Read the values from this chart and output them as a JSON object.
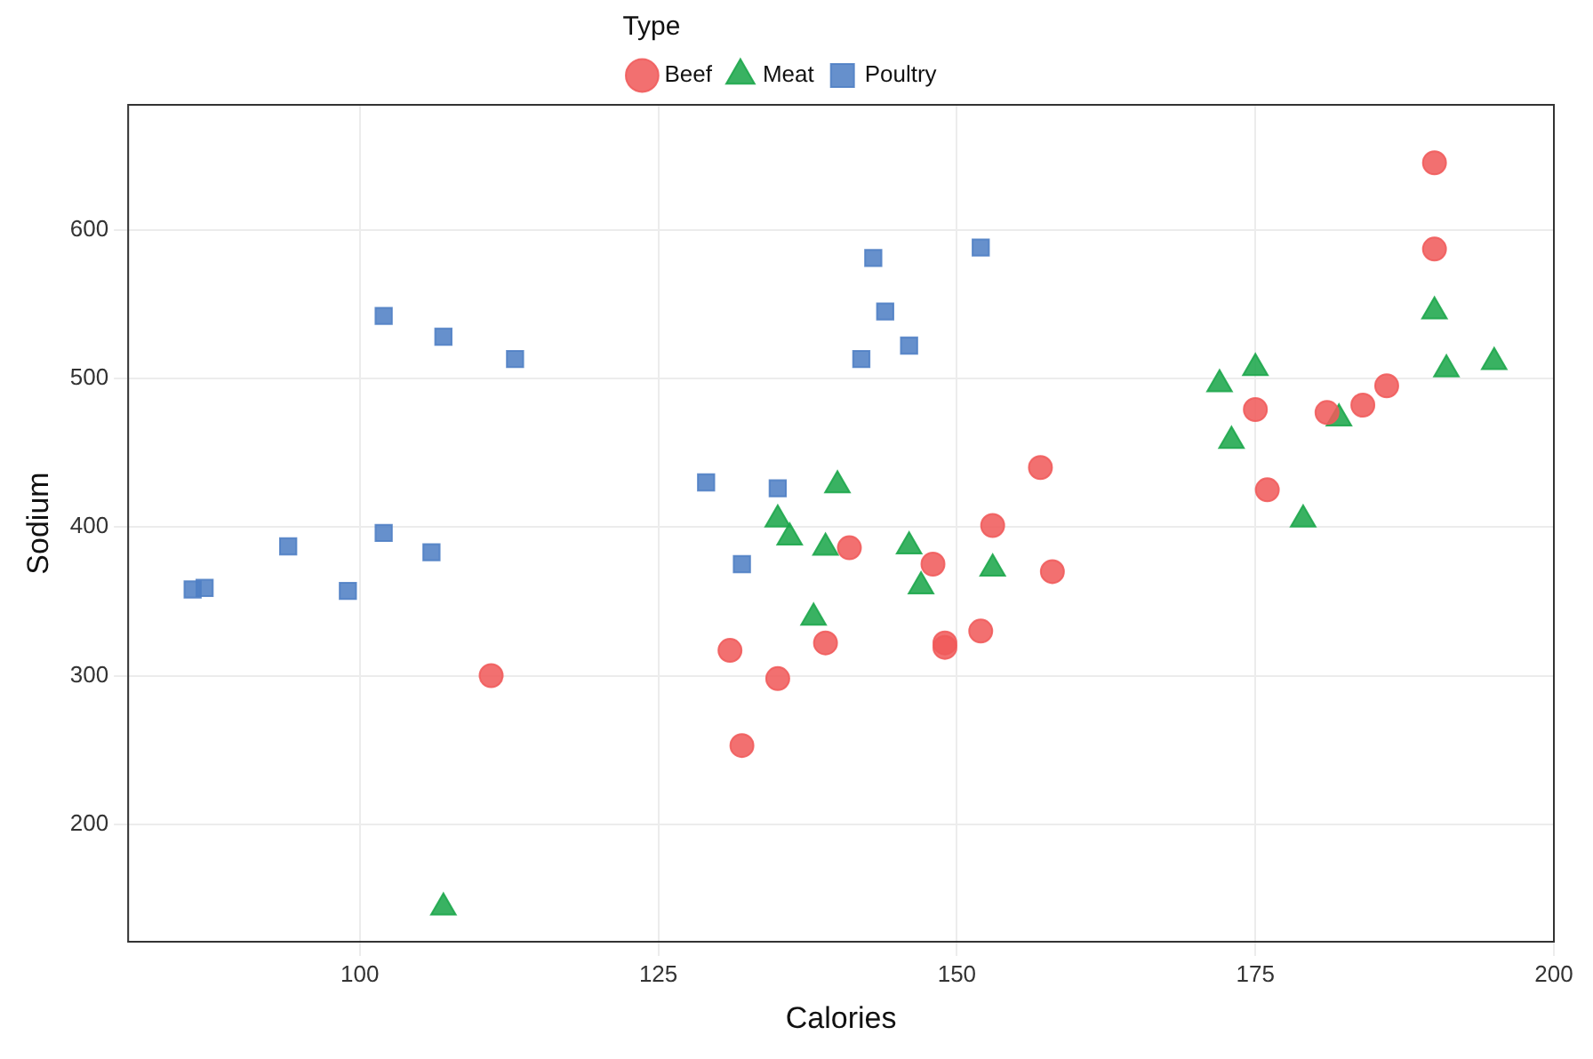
{
  "chart_data": {
    "type": "scatter",
    "xlabel": "Calories",
    "ylabel": "Sodium",
    "legend_title": "Type",
    "legend": "top",
    "grid": true,
    "xlim": [
      80.6,
      200
    ],
    "xticks": [
      100,
      125,
      150,
      175,
      200
    ],
    "ylim": [
      121,
      684
    ],
    "yticks": [
      200,
      300,
      400,
      500,
      600
    ],
    "series": [
      {
        "name": "Beef",
        "color": "#f05a5a",
        "marker": "circle",
        "x": [
          186,
          181,
          176,
          149,
          184,
          190,
          158,
          139,
          175,
          148,
          152,
          111,
          141,
          153,
          190,
          157,
          131,
          149,
          135,
          132
        ],
        "values": [
          495,
          477,
          425,
          322,
          482,
          587,
          370,
          322,
          479,
          375,
          330,
          300,
          386,
          401,
          645,
          440,
          317,
          319,
          298,
          253
        ]
      },
      {
        "name": "Meat",
        "color": "#1aa64a",
        "marker": "triangle",
        "x": [
          173,
          191,
          182,
          190,
          172,
          147,
          146,
          139,
          175,
          136,
          179,
          153,
          107,
          195,
          135,
          140,
          138
        ],
        "values": [
          458,
          506,
          473,
          545,
          496,
          360,
          387,
          386,
          507,
          393,
          405,
          372,
          144,
          511,
          405,
          428,
          339
        ]
      },
      {
        "name": "Poultry",
        "color": "#4e7fc4",
        "marker": "square",
        "x": [
          129,
          132,
          102,
          106,
          94,
          102,
          87,
          99,
          107,
          113,
          135,
          142,
          86,
          143,
          152,
          146,
          144
        ],
        "values": [
          430,
          375,
          396,
          383,
          387,
          542,
          359,
          357,
          528,
          513,
          426,
          513,
          358,
          581,
          588,
          522,
          545
        ]
      }
    ]
  }
}
